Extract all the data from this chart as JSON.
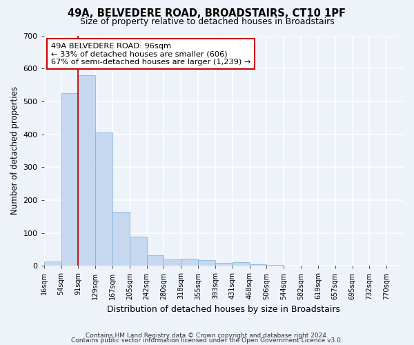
{
  "title": "49A, BELVEDERE ROAD, BROADSTAIRS, CT10 1PF",
  "subtitle": "Size of property relative to detached houses in Broadstairs",
  "xlabel": "Distribution of detached houses by size in Broadstairs",
  "ylabel": "Number of detached properties",
  "bar_color": "#c5d8f0",
  "bar_edge_color": "#7aaed6",
  "background_color": "#eef2f9",
  "grid_color": "#ffffff",
  "annotation_box_color": "#cc0000",
  "annotation_line_color": "#cc0000",
  "tick_labels": [
    "16sqm",
    "54sqm",
    "91sqm",
    "129sqm",
    "167sqm",
    "205sqm",
    "242sqm",
    "280sqm",
    "318sqm",
    "355sqm",
    "393sqm",
    "431sqm",
    "468sqm",
    "506sqm",
    "544sqm",
    "582sqm",
    "619sqm",
    "657sqm",
    "695sqm",
    "732sqm",
    "770sqm"
  ],
  "bar_values": [
    13,
    525,
    580,
    405,
    165,
    88,
    32,
    20,
    22,
    18,
    8,
    12,
    5,
    3,
    0,
    0,
    0,
    0,
    0,
    0,
    0
  ],
  "vertical_line_x": 2,
  "annotation_text": "49A BELVEDERE ROAD: 96sqm\n← 33% of detached houses are smaller (606)\n67% of semi-detached houses are larger (1,239) →",
  "ylim": [
    0,
    700
  ],
  "yticks": [
    0,
    100,
    200,
    300,
    400,
    500,
    600,
    700
  ],
  "footnote1": "Contains HM Land Registry data © Crown copyright and database right 2024.",
  "footnote2": "Contains public sector information licensed under the Open Government Licence v3.0."
}
